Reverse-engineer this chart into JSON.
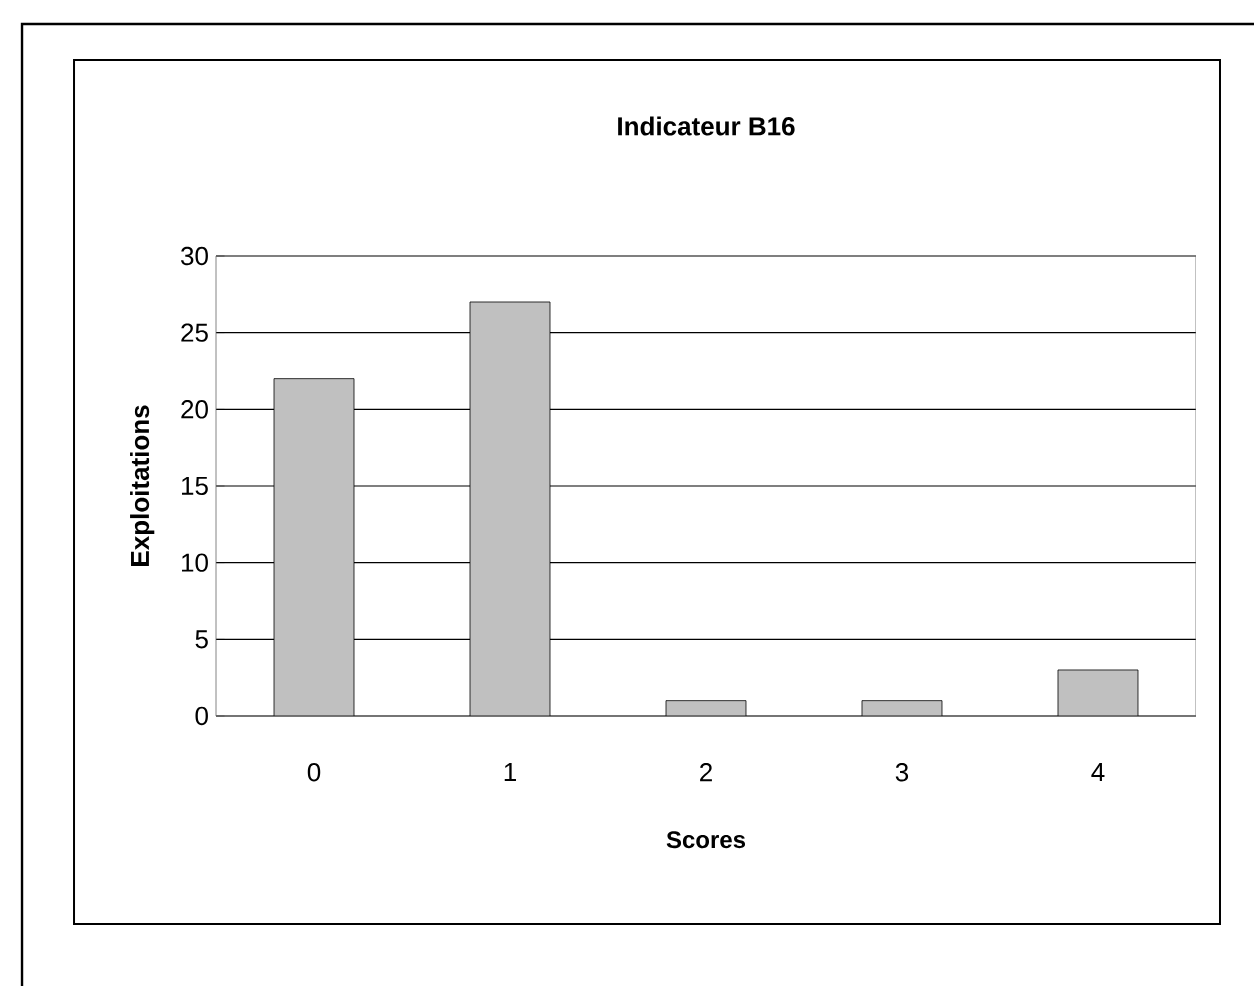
{
  "chart_data": {
    "type": "bar",
    "title": "Indicateur B16",
    "xlabel": "Scores",
    "ylabel": "Exploitations",
    "categories": [
      "0",
      "1",
      "2",
      "3",
      "4"
    ],
    "values": [
      22,
      27,
      1,
      1,
      3
    ],
    "color": "#c0c0c0",
    "ylim": [
      0,
      30
    ],
    "yticks": [
      0,
      5,
      10,
      15,
      20,
      25,
      30
    ],
    "grid": "y"
  }
}
